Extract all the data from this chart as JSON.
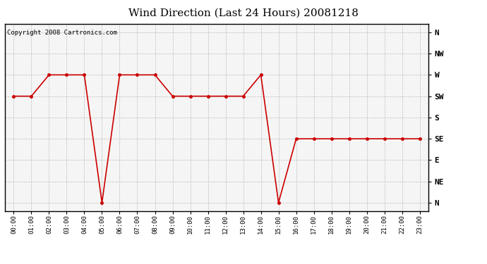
{
  "title": "Wind Direction (Last 24 Hours) 20081218",
  "copyright_text": "Copyright 2008 Cartronics.com",
  "line_color": "#cc0000",
  "bg_color": "#ffffff",
  "plot_bg_color": "#f5f5f5",
  "marker": "o",
  "marker_size": 3,
  "ytick_labels": [
    "N",
    "NE",
    "E",
    "SE",
    "S",
    "SW",
    "W",
    "NW",
    "N"
  ],
  "ytick_values": [
    0,
    45,
    90,
    135,
    180,
    225,
    270,
    315,
    360
  ],
  "ylim": [
    -18,
    378
  ],
  "hours": [
    0,
    1,
    2,
    3,
    4,
    5,
    6,
    7,
    8,
    9,
    10,
    11,
    12,
    13,
    14,
    15,
    16,
    17,
    18,
    19,
    20,
    21,
    22,
    23
  ],
  "wind_dir": [
    225,
    225,
    270,
    270,
    270,
    0,
    270,
    270,
    270,
    225,
    225,
    225,
    225,
    225,
    270,
    0,
    135,
    135,
    135,
    135,
    135,
    135,
    135,
    135
  ]
}
